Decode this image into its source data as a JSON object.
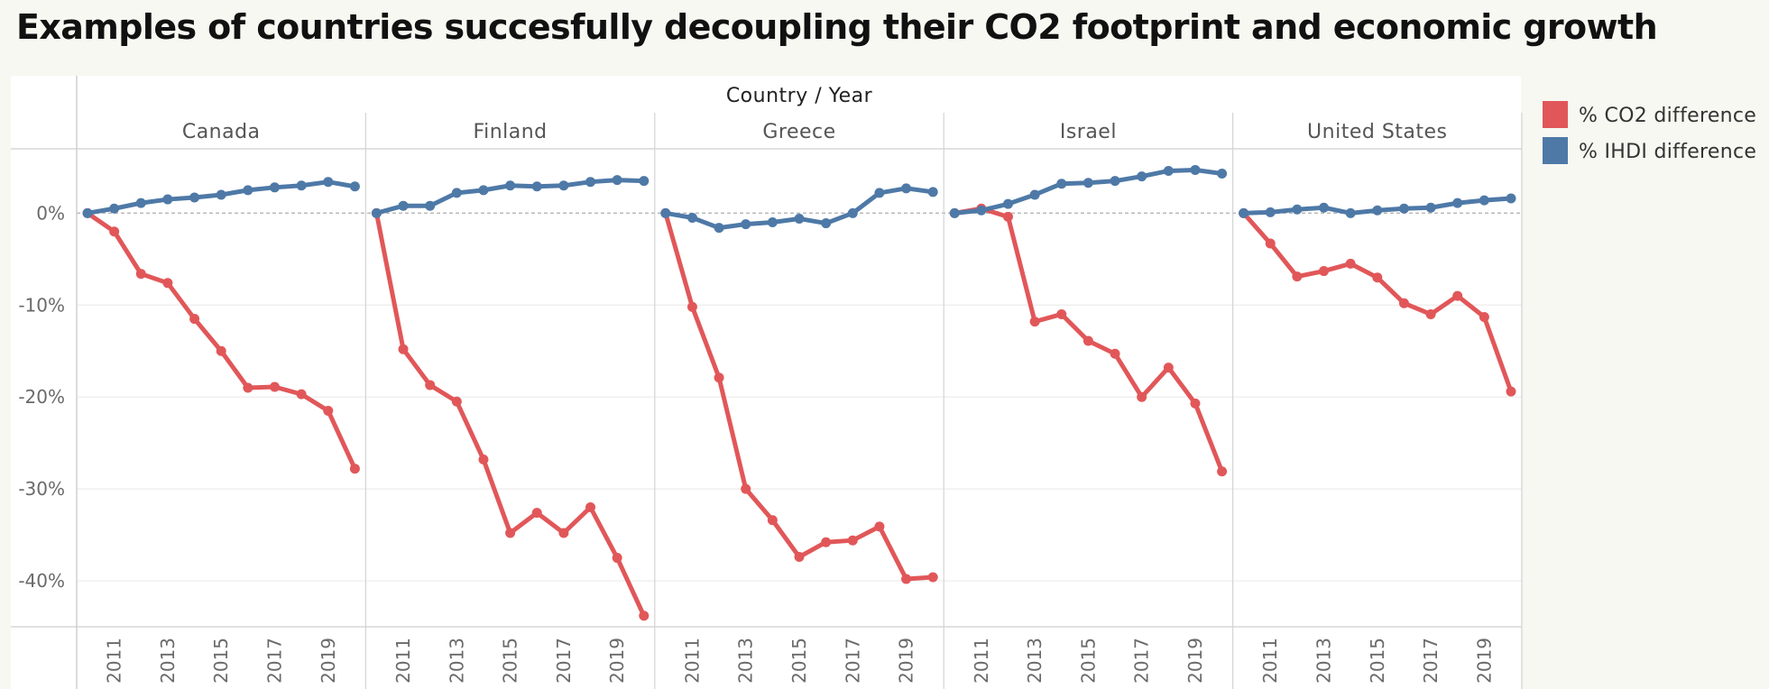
{
  "chart_data": {
    "type": "line",
    "title": "Examples of countries succesfully decoupling their CO2 footprint and economic growth",
    "column_header": "Country / Year",
    "ylim": [
      -45,
      7
    ],
    "y_ticks": [
      0,
      -10,
      -20,
      -30,
      -40
    ],
    "y_tick_labels": [
      "0%",
      "-10%",
      "-20%",
      "-30%",
      "-40%"
    ],
    "x_years": [
      2010,
      2011,
      2012,
      2013,
      2014,
      2015,
      2016,
      2017,
      2018,
      2019,
      2020
    ],
    "x_tick_years": [
      2011,
      2013,
      2015,
      2017,
      2019
    ],
    "x_tick_labels": [
      "2011",
      "2013",
      "2015",
      "2017",
      "2019"
    ],
    "legend_position": "top-right",
    "grid": true,
    "legend": [
      {
        "name": "% CO2 difference",
        "color": "#e15759"
      },
      {
        "name": "% IHDI difference",
        "color": "#4e79a7"
      }
    ],
    "panels": [
      {
        "name": "Canada",
        "series": [
          {
            "name": "% CO2 difference",
            "color": "#e15759",
            "values": [
              0,
              -2,
              -6.6,
              -7.6,
              -11.5,
              -15,
              -19,
              -18.9,
              -19.7,
              -21.5,
              -27.8
            ]
          },
          {
            "name": "% IHDI difference",
            "color": "#4e79a7",
            "values": [
              0,
              0.5,
              1.1,
              1.5,
              1.7,
              2,
              2.5,
              2.8,
              3,
              3.4,
              2.9
            ]
          }
        ]
      },
      {
        "name": "Finland",
        "series": [
          {
            "name": "% CO2 difference",
            "color": "#e15759",
            "values": [
              0,
              -14.8,
              -18.7,
              -20.5,
              -26.8,
              -34.8,
              -32.6,
              -34.8,
              -32,
              -37.5,
              -43.8
            ]
          },
          {
            "name": "% IHDI difference",
            "color": "#4e79a7",
            "values": [
              0,
              0.8,
              0.8,
              2.2,
              2.5,
              3,
              2.9,
              3,
              3.4,
              3.6,
              3.5
            ]
          }
        ]
      },
      {
        "name": "Greece",
        "series": [
          {
            "name": "% CO2 difference",
            "color": "#e15759",
            "values": [
              0,
              -10.2,
              -17.9,
              -30,
              -33.4,
              -37.4,
              -35.8,
              -35.6,
              -34.1,
              -39.8,
              -39.6
            ]
          },
          {
            "name": "% IHDI difference",
            "color": "#4e79a7",
            "values": [
              0,
              -0.5,
              -1.6,
              -1.2,
              -1,
              -0.6,
              -1.1,
              0,
              2.2,
              2.7,
              2.3
            ]
          }
        ]
      },
      {
        "name": "Israel",
        "series": [
          {
            "name": "% CO2 difference",
            "color": "#e15759",
            "values": [
              0,
              0.5,
              -0.4,
              -11.8,
              -11,
              -13.9,
              -15.3,
              -20,
              -16.8,
              -20.7,
              -28.1
            ]
          },
          {
            "name": "% IHDI difference",
            "color": "#4e79a7",
            "values": [
              0,
              0.3,
              1,
              2,
              3.2,
              3.3,
              3.5,
              4,
              4.6,
              4.7,
              4.3
            ]
          }
        ]
      },
      {
        "name": "United States",
        "series": [
          {
            "name": "% CO2 difference",
            "color": "#e15759",
            "values": [
              0,
              -3.3,
              -6.9,
              -6.3,
              -5.5,
              -7,
              -9.8,
              -11,
              -9,
              -11.3,
              -19.4
            ]
          },
          {
            "name": "% IHDI difference",
            "color": "#4e79a7",
            "values": [
              0,
              0.1,
              0.4,
              0.6,
              0,
              0.3,
              0.5,
              0.6,
              1.1,
              1.4,
              1.6
            ]
          }
        ]
      }
    ]
  }
}
